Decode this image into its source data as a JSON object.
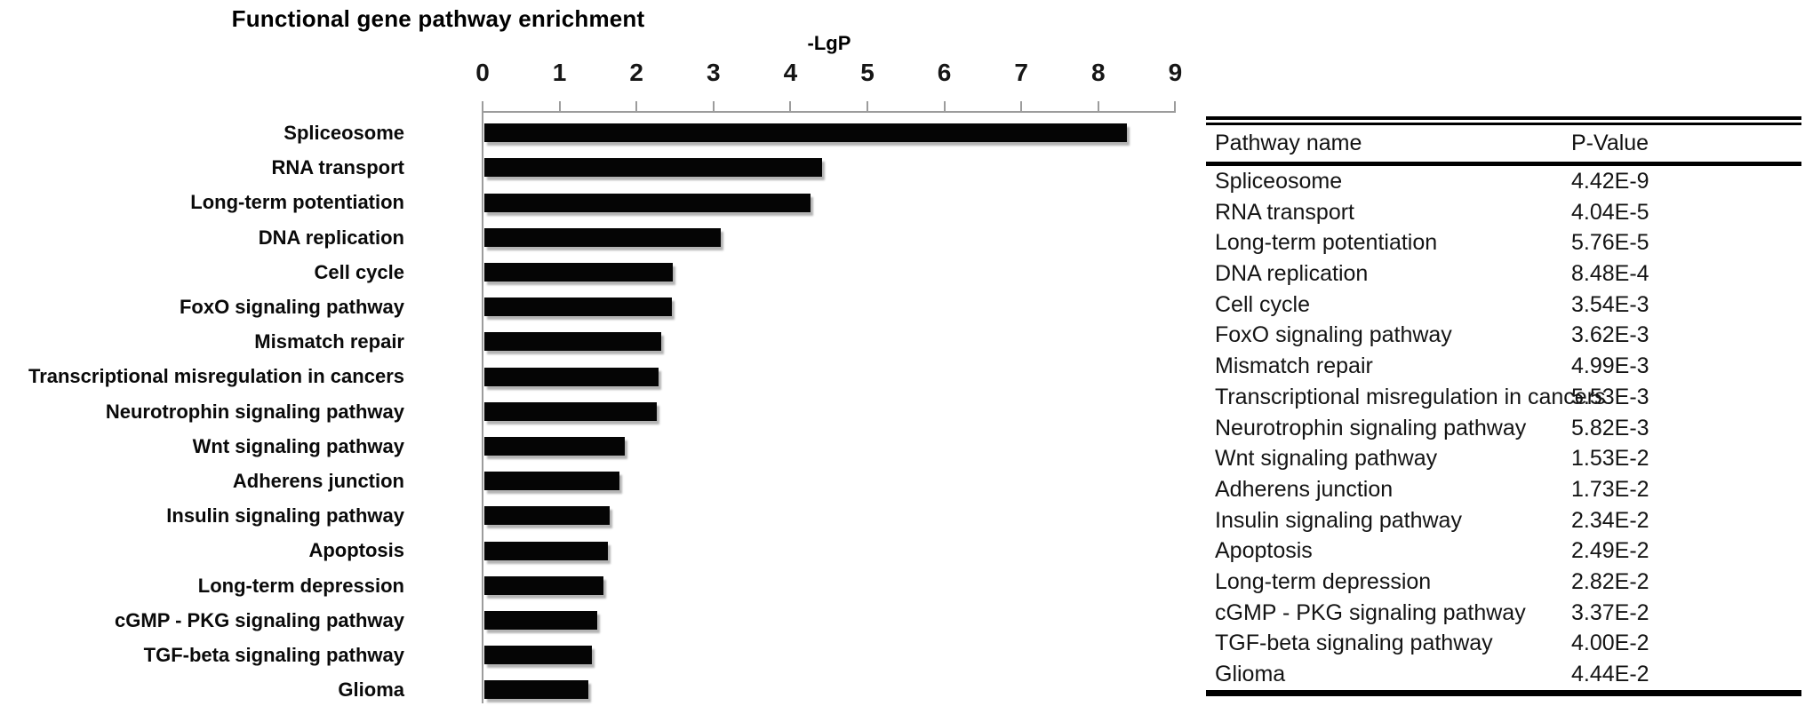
{
  "figure_title": "Functional gene pathway enrichment",
  "chart_data": {
    "type": "bar",
    "orientation": "horizontal",
    "title": "Functional gene pathway enrichment",
    "xlabel": "-LgP",
    "xlim": [
      0,
      9
    ],
    "x_ticks": [
      "0",
      "1",
      "2",
      "3",
      "4",
      "5",
      "6",
      "7",
      "8",
      "9"
    ],
    "grid": false,
    "legend": "none",
    "bar_color": "#050505",
    "axis_color": "#9c9c9c",
    "categories": [
      "Spliceosome",
      "RNA transport",
      "Long-term potentiation",
      "DNA replication",
      "Cell cycle",
      "FoxO signaling pathway",
      "Mismatch repair",
      "Transcriptional misregulation in cancers",
      "Neurotrophin signaling pathway",
      "Wnt signaling pathway",
      "Adherens junction",
      "Insulin signaling pathway",
      "Apoptosis",
      "Long-term depression",
      "cGMP - PKG signaling pathway",
      "TGF-beta signaling pathway",
      "Glioma"
    ],
    "values": [
      8.35,
      4.39,
      4.24,
      3.07,
      2.45,
      2.44,
      2.3,
      2.26,
      2.24,
      1.82,
      1.76,
      1.63,
      1.6,
      1.55,
      1.47,
      1.4,
      1.35
    ]
  },
  "table": {
    "headers": [
      "Pathway name",
      "P-Value"
    ],
    "rows": [
      [
        "Spliceosome",
        "4.42E-9"
      ],
      [
        "RNA transport",
        "4.04E-5"
      ],
      [
        "Long-term potentiation",
        "5.76E-5"
      ],
      [
        "DNA replication",
        "8.48E-4"
      ],
      [
        "Cell cycle",
        "3.54E-3"
      ],
      [
        "FoxO signaling pathway",
        "3.62E-3"
      ],
      [
        "Mismatch repair",
        "4.99E-3"
      ],
      [
        "Transcriptional misregulation in cancers",
        "5.53E-3"
      ],
      [
        "Neurotrophin signaling pathway",
        "5.82E-3"
      ],
      [
        "Wnt signaling pathway",
        "1.53E-2"
      ],
      [
        "Adherens junction",
        "1.73E-2"
      ],
      [
        "Insulin signaling pathway",
        "2.34E-2"
      ],
      [
        "Apoptosis",
        "2.49E-2"
      ],
      [
        "Long-term depression",
        "2.82E-2"
      ],
      [
        "cGMP - PKG signaling pathway",
        "3.37E-2"
      ],
      [
        "TGF-beta signaling pathway",
        "4.00E-2"
      ],
      [
        "Glioma",
        "4.44E-2"
      ]
    ]
  }
}
